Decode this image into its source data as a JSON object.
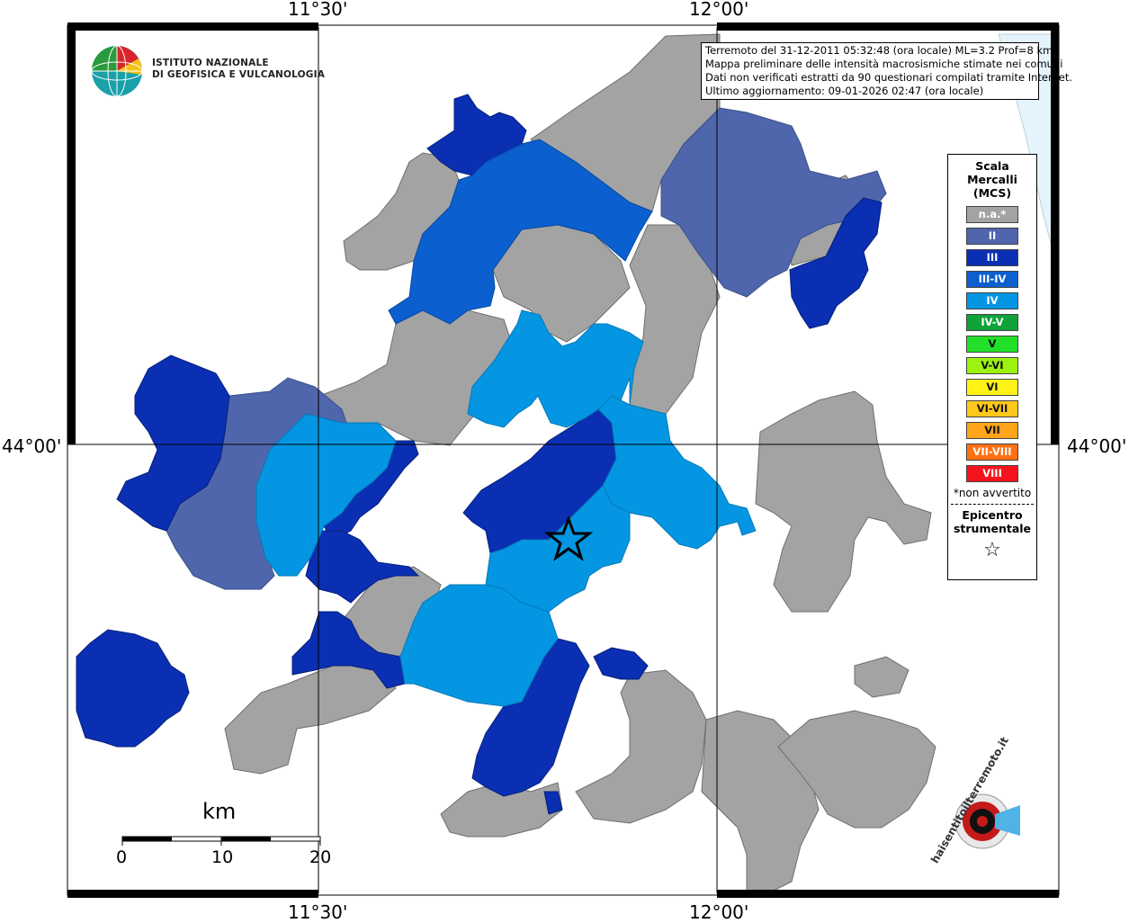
{
  "map": {
    "lon_labels": [
      "11°30'",
      "12°00'"
    ],
    "lat_label": "44°00'",
    "info_lines": [
      "Terremoto del 31-12-2011 05:32:48 (ora locale) ML=3.2 Prof=8 km",
      "Mappa preliminare delle intensità macrosismiche stimate nei comuni",
      "Dati non verificati estratti da 90 questionari compilati tramite Internet.",
      "Ultimo aggiornamento: 09-01-2026 02:47 (ora locale)"
    ],
    "institute": [
      "ISTITUTO NAZIONALE",
      "DI GEOFISICA E VULCANOLOGIA"
    ],
    "scale": {
      "unit": "km",
      "ticks": [
        "0",
        "10",
        "20"
      ]
    },
    "site_logo": "haisentitoilterremoto.it"
  },
  "legend": {
    "title": [
      "Scala",
      "Mercalli",
      "(MCS)"
    ],
    "items": [
      {
        "label": "n.a.*",
        "color": "#a3a3a3"
      },
      {
        "label": "II",
        "color": "#4f66ad"
      },
      {
        "label": "III",
        "color": "#0a2fb3"
      },
      {
        "label": "III-IV",
        "color": "#0b5fcf"
      },
      {
        "label": "IV",
        "color": "#0496e2"
      },
      {
        "label": "IV-V",
        "color": "#0fa33a"
      },
      {
        "label": "V",
        "color": "#22e02a"
      },
      {
        "label": "V-VI",
        "color": "#9ef20f"
      },
      {
        "label": "VI",
        "color": "#fff315"
      },
      {
        "label": "VI-VII",
        "color": "#ffc81a"
      },
      {
        "label": "VII",
        "color": "#ffa51a"
      },
      {
        "label": "VII-VIII",
        "color": "#ff7012"
      },
      {
        "label": "VIII",
        "color": "#f5141e"
      }
    ],
    "note": "*non avvertito",
    "epicenter": [
      "Epicentro",
      "strumentale"
    ],
    "epicenter_symbol": "☆"
  },
  "colors": {
    "na": "#a3a3a3",
    "ii": "#4f66ad",
    "iii": "#0a2fb3",
    "iii_iv": "#0b5fcf",
    "iv": "#0496e2",
    "sea": "#e4f3fc"
  }
}
